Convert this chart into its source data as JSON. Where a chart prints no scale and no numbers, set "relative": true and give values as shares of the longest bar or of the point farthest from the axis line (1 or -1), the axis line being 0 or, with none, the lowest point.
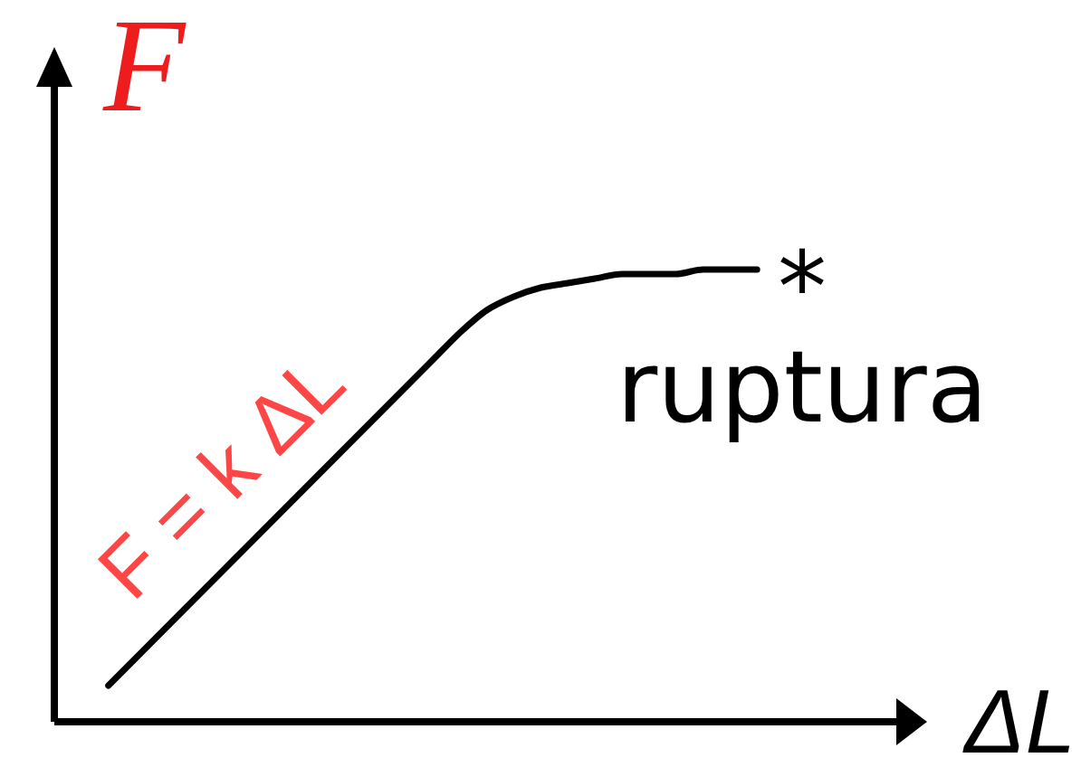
{
  "chart_data": {
    "type": "line",
    "relative": true,
    "xlabel": "ΔL",
    "ylabel": "F",
    "annotations": [
      "F = k ΔL",
      "*",
      "ruptura"
    ],
    "categories": [
      null,
      null,
      null,
      null,
      null,
      null,
      null,
      null,
      null,
      null,
      null,
      null,
      null,
      null,
      null,
      null,
      null,
      null,
      null,
      null,
      null,
      null,
      null,
      null,
      null,
      null,
      null,
      null,
      null,
      null,
      null,
      null,
      null
    ],
    "series": [
      {
        "color": "#000000",
        "values": [
          null,
          null,
          0.08,
          0.14,
          0.2,
          0.26,
          0.32,
          0.38,
          0.44,
          0.5,
          0.56,
          0.62,
          0.68,
          0.74,
          0.8,
          0.86,
          0.91,
          0.94,
          0.96,
          0.97,
          0.98,
          0.99,
          0.99,
          0.99,
          1,
          1,
          1,
          null,
          null,
          null,
          null,
          null,
          null
        ]
      }
    ],
    "marker": "none",
    "line_style": "solid",
    "grid": false,
    "tick_labels": false
  }
}
